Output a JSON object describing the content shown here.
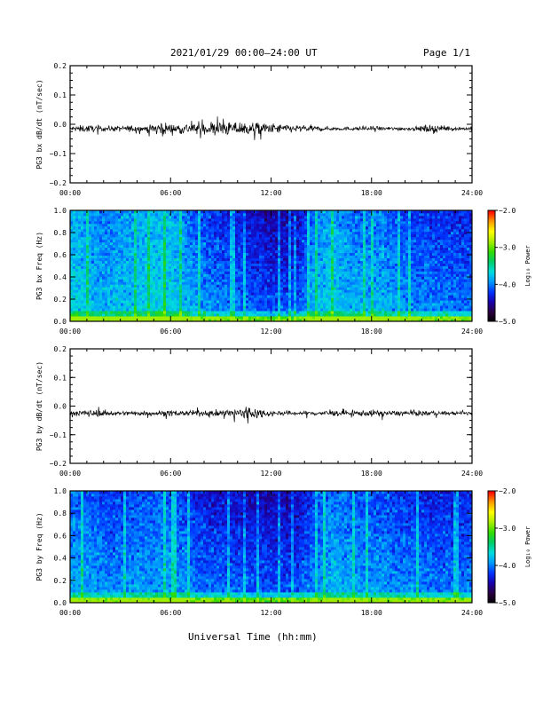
{
  "header": {
    "title": "2021/01/29  00:00–24:00 UT",
    "page": "Page 1/1"
  },
  "xlabel": "Universal Time (hh:mm)",
  "colorscale": [
    "#000000",
    "#2a0040",
    "#1a00aa",
    "#0033ff",
    "#0099ff",
    "#00dddd",
    "#00cc66",
    "#33dd00",
    "#aaee00",
    "#ffff00",
    "#ff9900",
    "#ff0000"
  ],
  "chart_data": [
    {
      "type": "line",
      "ylabel": "PG3 bx dB/dt (nT/sec)",
      "xlim": [
        0,
        24
      ],
      "ylim": [
        -0.2,
        0.2
      ],
      "xticks": [
        "00:00",
        "06:00",
        "12:00",
        "18:00",
        "24:00"
      ],
      "yticks": [
        "0.2",
        "0.1",
        "0.0",
        "−0.1",
        "−0.2"
      ],
      "series": [
        {
          "x": [
            0,
            1,
            2,
            3,
            4,
            5,
            5.2,
            6,
            7,
            8,
            8.5,
            9,
            10,
            11,
            12,
            13,
            14,
            15,
            16,
            17,
            18,
            19,
            20,
            21,
            21.8,
            22,
            23,
            24
          ],
          "y_center": -0.015,
          "envelope": [
            0.012,
            0.02,
            0.014,
            0.015,
            0.018,
            0.02,
            0.045,
            0.025,
            0.03,
            0.03,
            0.04,
            0.035,
            0.038,
            0.035,
            0.028,
            0.022,
            0.018,
            0.012,
            0.01,
            0.01,
            0.012,
            0.01,
            0.01,
            0.012,
            0.03,
            0.014,
            0.01,
            0.01
          ]
        }
      ]
    },
    {
      "type": "heatmap",
      "ylabel": "PG3 bx Freq (Hz)",
      "xlim": [
        0,
        24
      ],
      "ylim": [
        0,
        1.0
      ],
      "xticks": [
        "00:00",
        "06:00",
        "12:00",
        "18:00",
        "24:00"
      ],
      "yticks": [
        "1.0",
        "0.8",
        "0.6",
        "0.4",
        "0.2",
        "0.0"
      ],
      "colorbar": {
        "label": "Log₁₀ Power",
        "range": [
          -5.0,
          -2.0
        ],
        "ticks": [
          "−2.0",
          "−3.0",
          "−4.0",
          "−5.0"
        ]
      },
      "activity": [
        0.7,
        0.6,
        0.6,
        0.65,
        0.7,
        0.75,
        0.65,
        0.5,
        0.45,
        0.4,
        0.35,
        0.3,
        0.25,
        0.3,
        0.6,
        0.7,
        0.6,
        0.55,
        0.6,
        0.5,
        0.45,
        0.45,
        0.4,
        0.4
      ]
    },
    {
      "type": "line",
      "ylabel": "PG3 by dB/dt (nT/sec)",
      "xlim": [
        0,
        24
      ],
      "ylim": [
        -0.2,
        0.2
      ],
      "xticks": [
        "00:00",
        "06:00",
        "12:00",
        "18:00",
        "24:00"
      ],
      "yticks": [
        "0.2",
        "0.1",
        "0.0",
        "−0.1",
        "−0.2"
      ],
      "series": [
        {
          "x": [
            0,
            1,
            2,
            3,
            4,
            5,
            6,
            7,
            8,
            9,
            10,
            10.5,
            11,
            12,
            13,
            14,
            15,
            16,
            17,
            18,
            19,
            20,
            21,
            22,
            23,
            24
          ],
          "y_center": -0.025,
          "envelope": [
            0.012,
            0.02,
            0.015,
            0.012,
            0.012,
            0.015,
            0.015,
            0.014,
            0.014,
            0.018,
            0.03,
            0.05,
            0.03,
            0.015,
            0.012,
            0.012,
            0.014,
            0.015,
            0.014,
            0.018,
            0.015,
            0.014,
            0.014,
            0.012,
            0.01,
            0.01
          ]
        }
      ]
    },
    {
      "type": "heatmap",
      "ylabel": "PG3 by Freq (Hz)",
      "xlim": [
        0,
        24
      ],
      "ylim": [
        0,
        1.0
      ],
      "xticks": [
        "00:00",
        "06:00",
        "12:00",
        "18:00",
        "24:00"
      ],
      "yticks": [
        "1.0",
        "0.8",
        "0.6",
        "0.4",
        "0.2",
        "0.0"
      ],
      "colorbar": {
        "label": "Log₁₀ Power",
        "range": [
          -5.0,
          -2.0
        ],
        "ticks": [
          "−2.0",
          "−3.0",
          "−4.0",
          "−5.0"
        ]
      },
      "activity": [
        0.55,
        0.5,
        0.45,
        0.5,
        0.5,
        0.55,
        0.5,
        0.4,
        0.35,
        0.35,
        0.3,
        0.3,
        0.28,
        0.3,
        0.45,
        0.6,
        0.55,
        0.5,
        0.5,
        0.45,
        0.45,
        0.4,
        0.4,
        0.4
      ]
    }
  ]
}
